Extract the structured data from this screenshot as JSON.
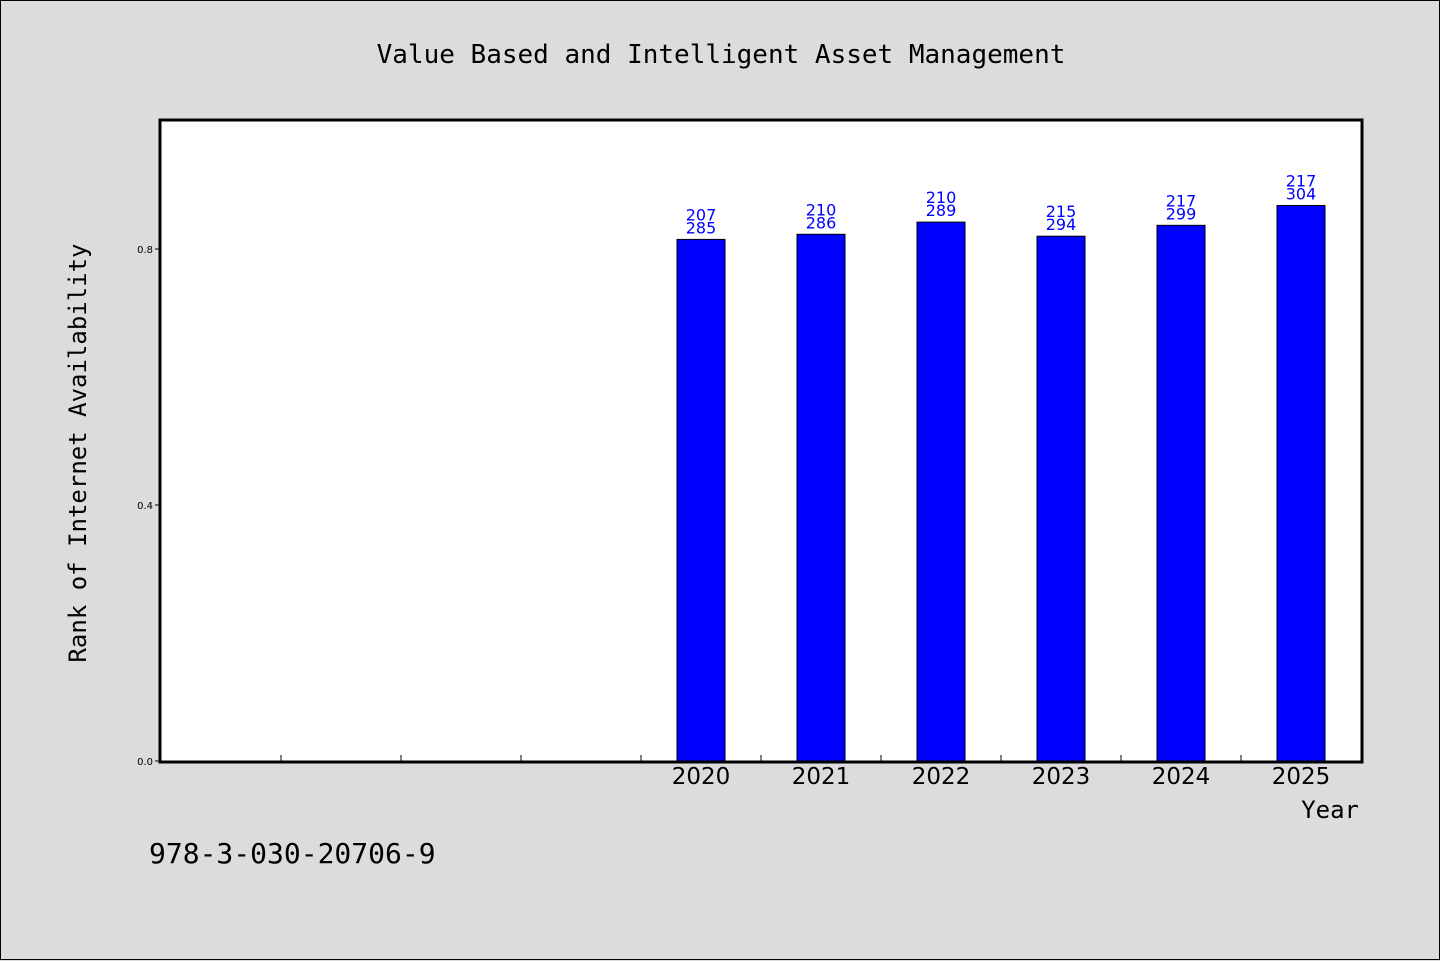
{
  "chart_data": {
    "type": "bar",
    "title": "Value Based and Intelligent Asset Management",
    "xlabel": "Year",
    "ylabel": "Rank of Internet Availability",
    "categories": [
      "",
      "",
      "",
      "",
      "2020",
      "2021",
      "2022",
      "2023",
      "2024",
      "2025"
    ],
    "values": [
      null,
      null,
      null,
      null,
      0.815,
      0.823,
      0.842,
      0.82,
      0.837,
      0.868
    ],
    "bar_labels": [
      null,
      null,
      null,
      null,
      [
        "207",
        "285"
      ],
      [
        "210",
        "286"
      ],
      [
        "210",
        "289"
      ],
      [
        "215",
        "294"
      ],
      [
        "217",
        "299"
      ],
      [
        "217",
        "304"
      ]
    ],
    "yticks": [
      0.0,
      0.4,
      0.8
    ],
    "ytick_labels": [
      "0.0",
      "0.4",
      "0.8"
    ],
    "ylim": [
      0,
      1.0
    ],
    "bar_color": "#0000ff",
    "label_color": "#0000cc",
    "grid": false,
    "legend": "none"
  },
  "footnote": "978-3-030-20706-9"
}
